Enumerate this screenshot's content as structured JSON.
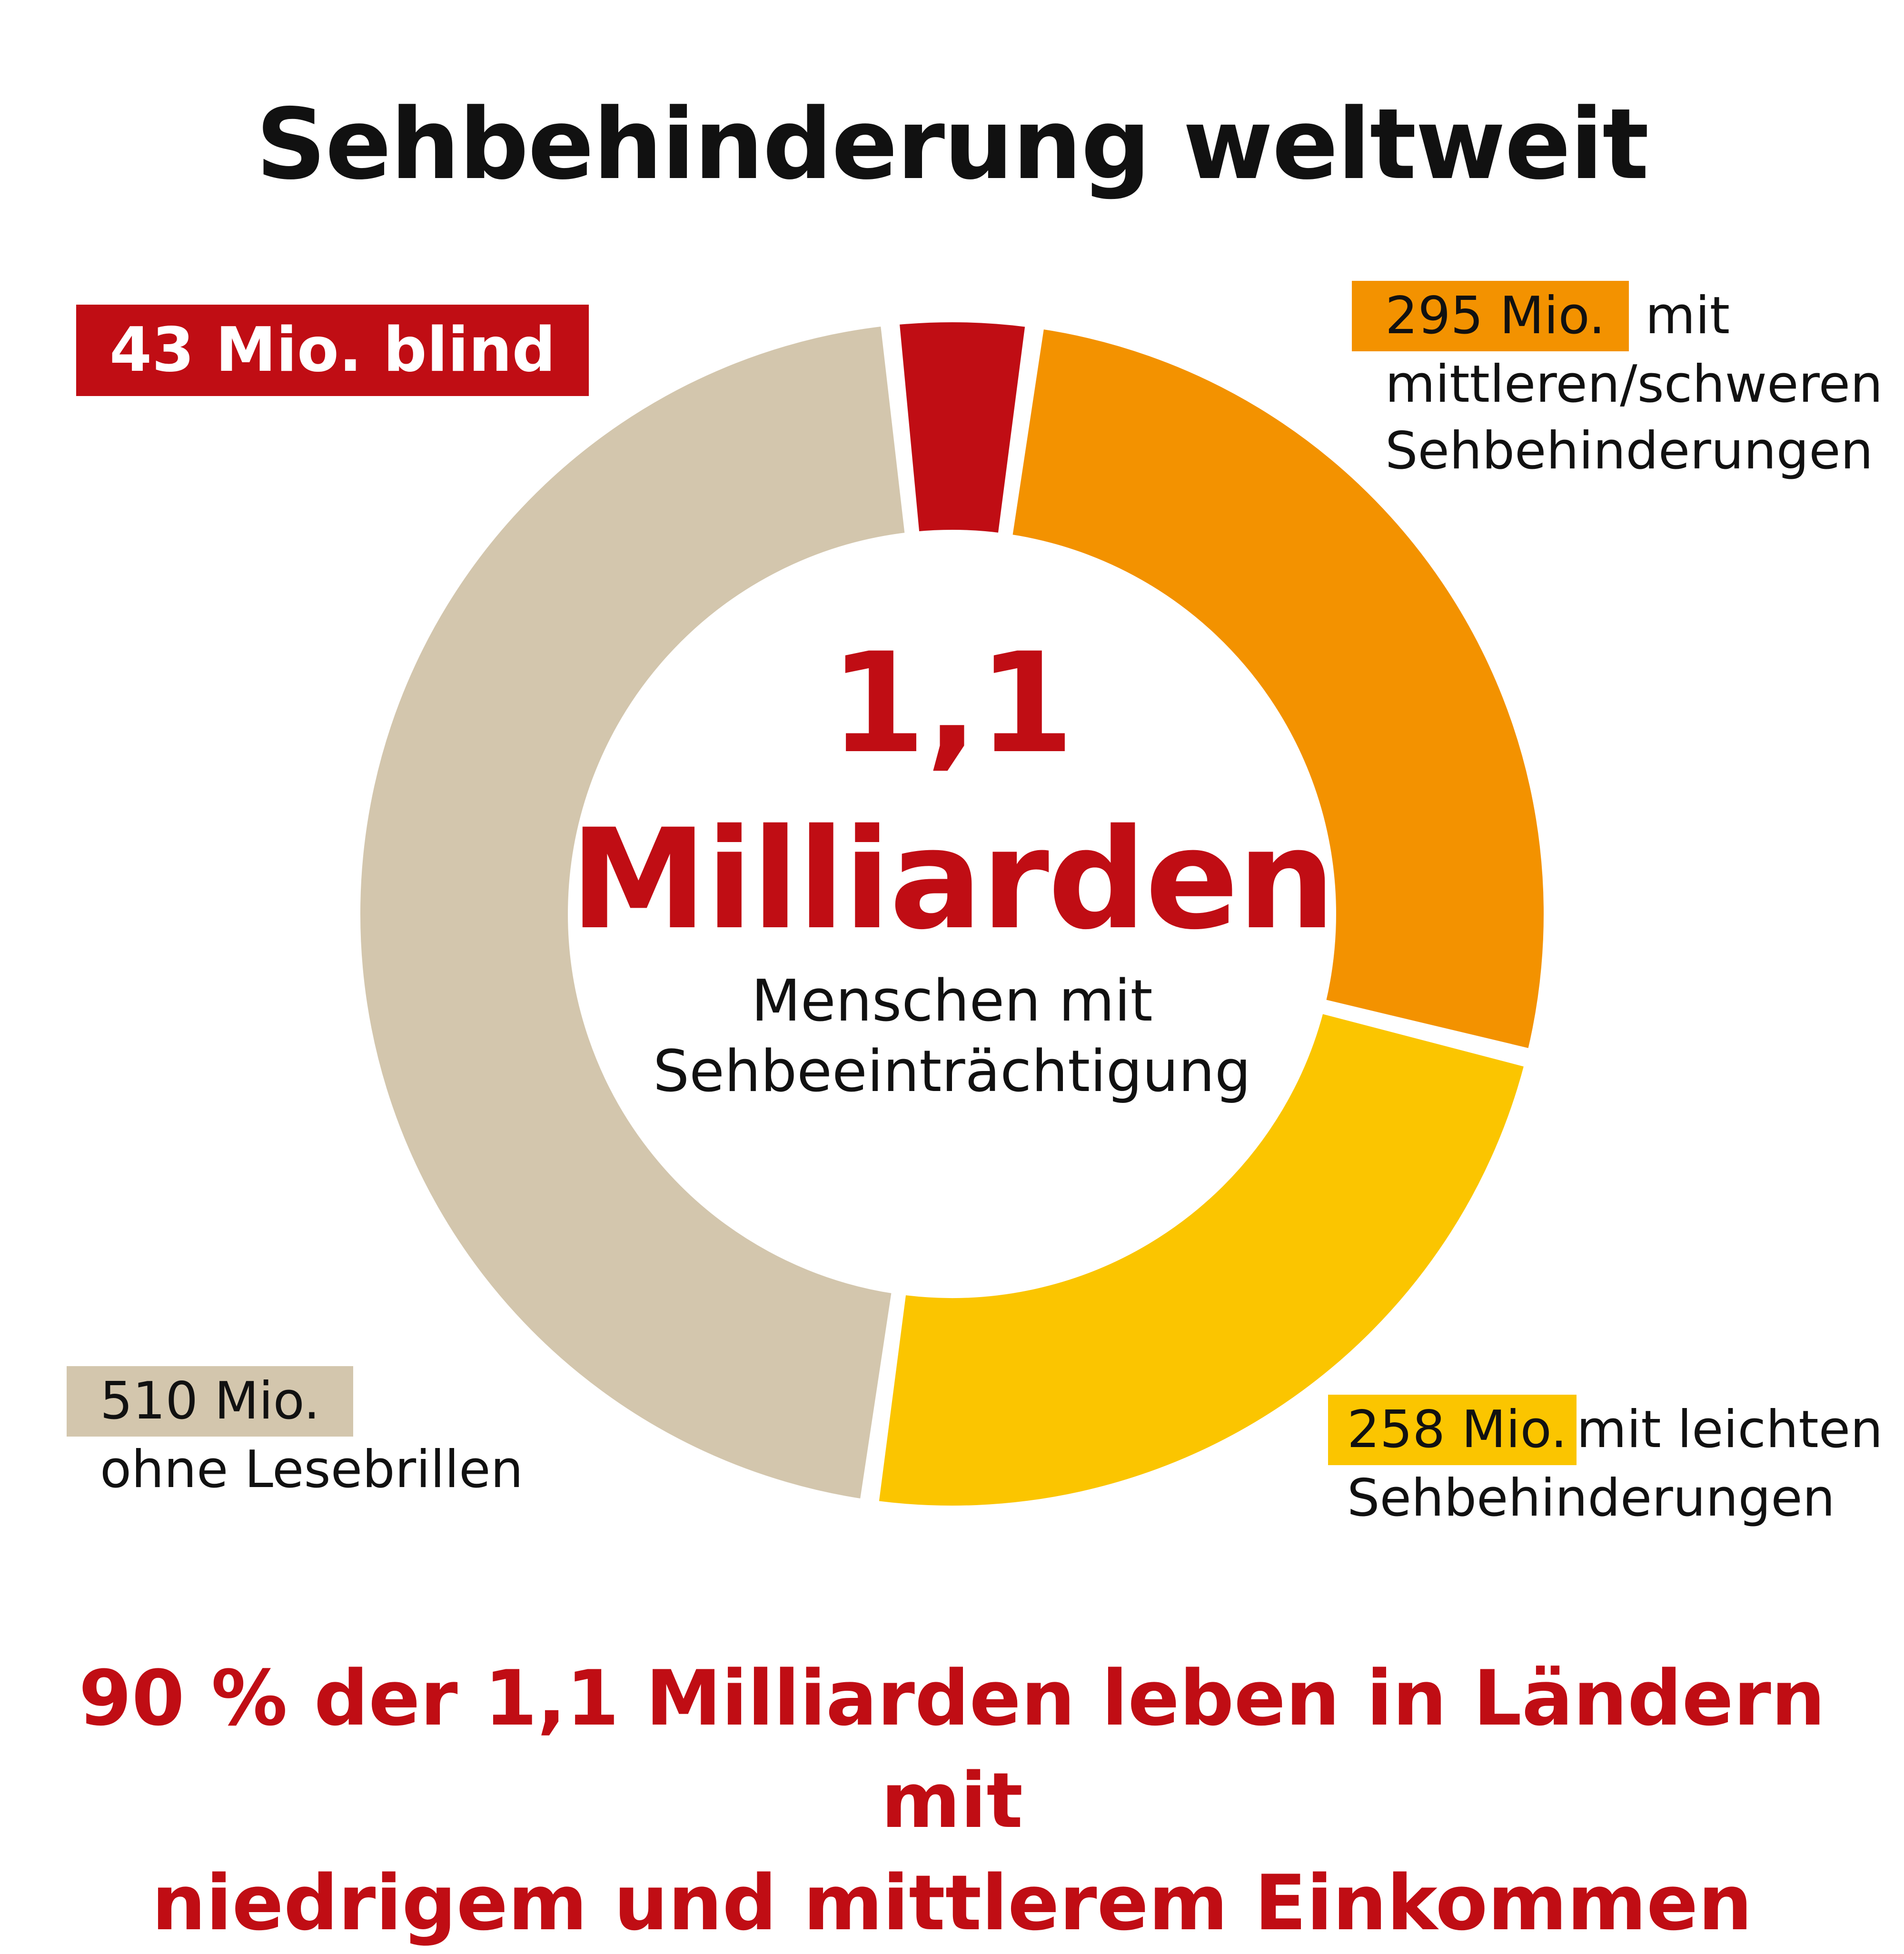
{
  "title": "Sehbehinderung weltweit",
  "center": {
    "value": "1,1",
    "unit": "Milliarden",
    "line1": "Menschen mit",
    "line2": "Sehbeeinträchtigung"
  },
  "labels": {
    "blind": "43 Mio. blind",
    "moderate_value": "295 Mio.",
    "moderate_text1": "mit",
    "moderate_text2": "mittleren/schweren",
    "moderate_text3": "Sehbehinderungen",
    "mild_value": "258 Mio.",
    "mild_text1": "mit leichten",
    "mild_text2": "Sehbehinderungen",
    "reading_value": "510 Mio.",
    "reading_text": "ohne Lesebrillen"
  },
  "footer": {
    "line1": "90 % der 1,1 Milliarden leben in Ländern mit",
    "line2": "niedrigem und mittlerem Einkommen"
  },
  "chart_data": {
    "type": "pie",
    "style": "donut",
    "categories": [
      "blind",
      "mittlere/schwere Sehbehinderungen",
      "leichte Sehbehinderungen",
      "ohne Lesebrillen"
    ],
    "values": [
      43,
      295,
      258,
      510
    ],
    "unit": "Mio.",
    "colors": [
      "#c00d14",
      "#f39200",
      "#fbc500",
      "#d3c6ad"
    ],
    "start": "top",
    "direction": "clockwise"
  }
}
